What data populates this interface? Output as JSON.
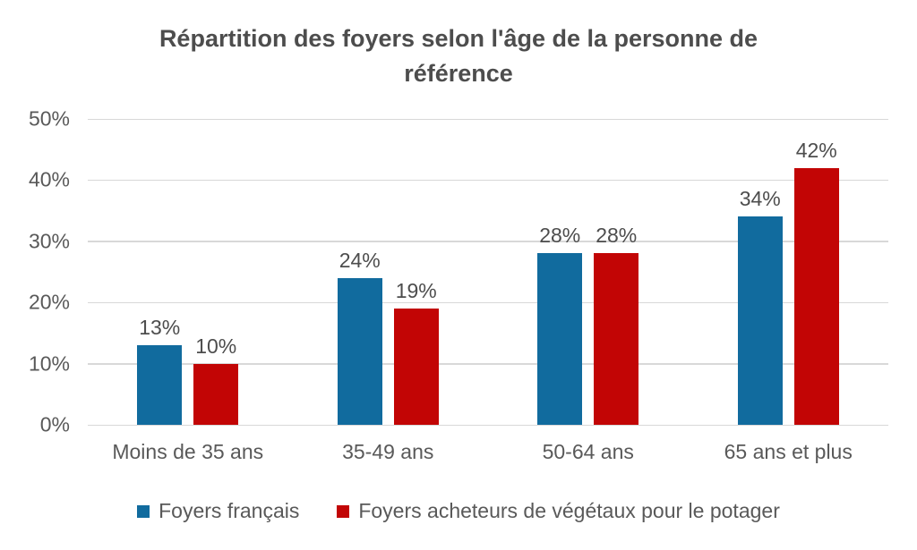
{
  "chart_data": {
    "type": "bar",
    "title": "Répartition des foyers selon l'âge de la personne de référence",
    "categories": [
      "Moins de 35 ans",
      "35-49 ans",
      "50-64 ans",
      "65 ans et plus"
    ],
    "series": [
      {
        "name": "Foyers français",
        "color": "#116b9e",
        "values": [
          13,
          24,
          28,
          34
        ],
        "labels": [
          "13%",
          "24%",
          "28%",
          "34%"
        ]
      },
      {
        "name": "Foyers acheteurs de végétaux pour le potager",
        "color": "#c20505",
        "values": [
          10,
          19,
          28,
          42
        ],
        "labels": [
          "10%",
          "19%",
          "28%",
          "42%"
        ]
      }
    ],
    "ylim": [
      0,
      50
    ],
    "ytick_step": 10,
    "yticks": [
      "0%",
      "10%",
      "20%",
      "30%",
      "40%",
      "50%"
    ],
    "grid": true,
    "gridline_color": "#d8d8d8",
    "legend_position": "bottom",
    "text_color": "#595959",
    "title_color": "#4d4d4d"
  }
}
